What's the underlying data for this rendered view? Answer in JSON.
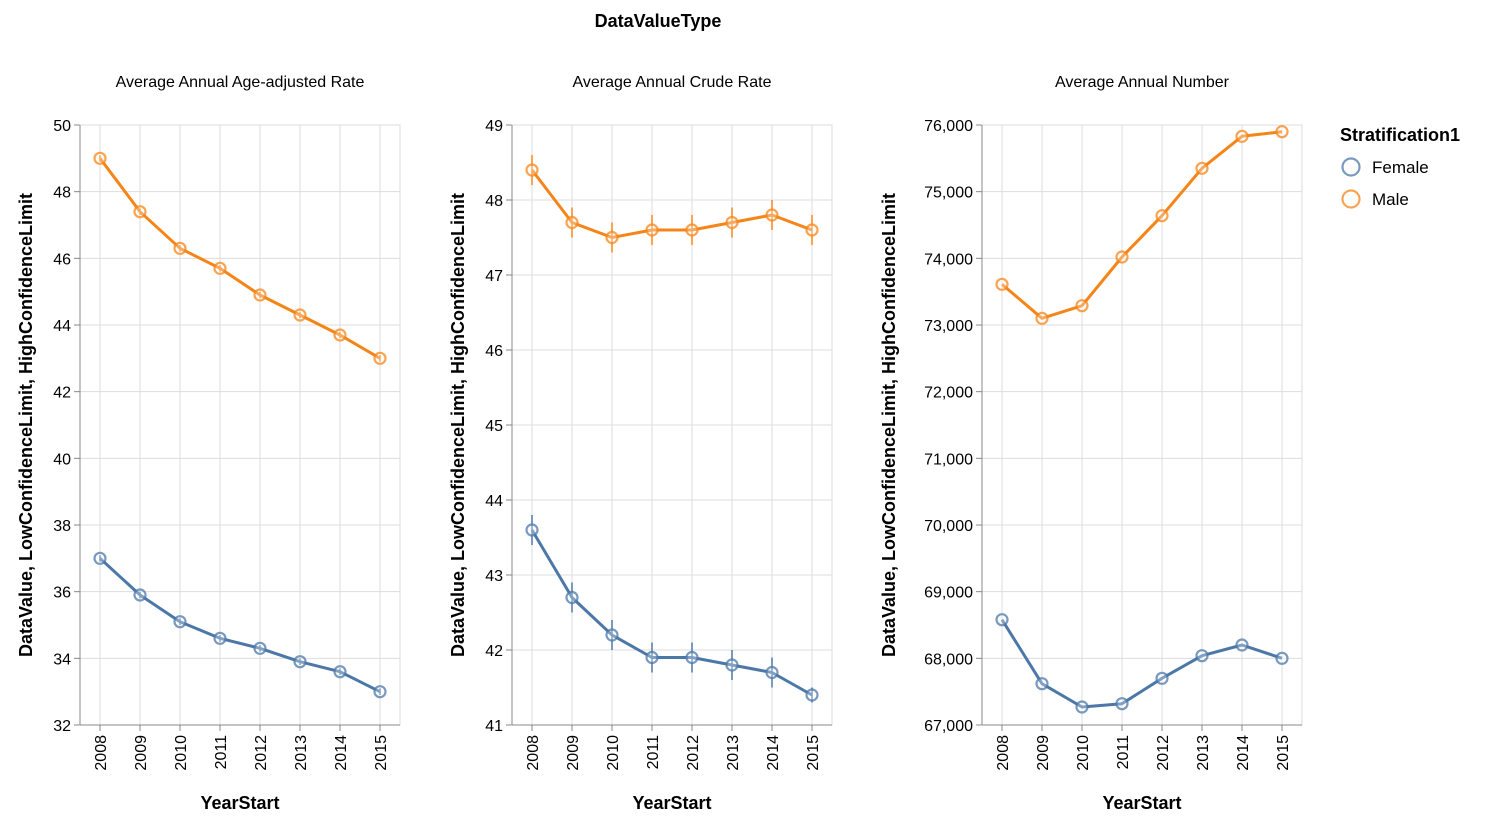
{
  "header_title": "DataValueType",
  "legend": {
    "title": "Stratification1",
    "items": [
      {
        "label": "Female",
        "color": "#4c78a8"
      },
      {
        "label": "Male",
        "color": "#f58518"
      }
    ]
  },
  "chart_data": [
    {
      "type": "line",
      "title": "Average Annual Age-adjusted Rate",
      "xlabel": "YearStart",
      "ylabel": "DataValue, LowConfidenceLimit, HighConfidenceLimit",
      "categories": [
        "2008",
        "2009",
        "2010",
        "2011",
        "2012",
        "2013",
        "2014",
        "2015"
      ],
      "ylim": [
        32,
        50
      ],
      "yticks": [
        32,
        34,
        36,
        38,
        40,
        42,
        44,
        46,
        48,
        50
      ],
      "ytick_labels": [
        "32",
        "34",
        "36",
        "38",
        "40",
        "42",
        "44",
        "46",
        "48",
        "50"
      ],
      "grid": true,
      "series": [
        {
          "name": "Female",
          "color": "#4c78a8",
          "values": [
            37.0,
            35.9,
            35.1,
            34.6,
            34.3,
            33.9,
            33.6,
            33.0
          ],
          "low": [
            36.9,
            35.8,
            35.0,
            34.5,
            34.2,
            33.8,
            33.5,
            32.9
          ],
          "high": [
            37.1,
            36.0,
            35.2,
            34.7,
            34.4,
            34.0,
            33.7,
            33.1
          ]
        },
        {
          "name": "Male",
          "color": "#f58518",
          "values": [
            49.0,
            47.4,
            46.3,
            45.7,
            44.9,
            44.3,
            43.7,
            43.0
          ],
          "low": [
            48.9,
            47.3,
            46.2,
            45.6,
            44.8,
            44.2,
            43.6,
            42.9
          ],
          "high": [
            49.1,
            47.5,
            46.4,
            45.8,
            45.0,
            44.4,
            43.8,
            43.1
          ]
        }
      ]
    },
    {
      "type": "line",
      "title": "Average Annual Crude Rate",
      "xlabel": "YearStart",
      "ylabel": "DataValue, LowConfidenceLimit, HighConfidenceLimit",
      "categories": [
        "2008",
        "2009",
        "2010",
        "2011",
        "2012",
        "2013",
        "2014",
        "2015"
      ],
      "ylim": [
        41,
        49
      ],
      "yticks": [
        41,
        42,
        43,
        44,
        45,
        46,
        47,
        48,
        49
      ],
      "ytick_labels": [
        "41",
        "42",
        "43",
        "44",
        "45",
        "46",
        "47",
        "48",
        "49"
      ],
      "grid": true,
      "series": [
        {
          "name": "Female",
          "color": "#4c78a8",
          "values": [
            43.6,
            42.7,
            42.2,
            41.9,
            41.9,
            41.8,
            41.7,
            41.4
          ],
          "low": [
            43.4,
            42.5,
            42.0,
            41.7,
            41.7,
            41.6,
            41.5,
            41.3
          ],
          "high": [
            43.8,
            42.9,
            42.4,
            42.1,
            42.1,
            42.0,
            41.9,
            41.5
          ]
        },
        {
          "name": "Male",
          "color": "#f58518",
          "values": [
            48.4,
            47.7,
            47.5,
            47.6,
            47.6,
            47.7,
            47.8,
            47.6
          ],
          "low": [
            48.2,
            47.5,
            47.3,
            47.4,
            47.4,
            47.5,
            47.6,
            47.4
          ],
          "high": [
            48.6,
            47.9,
            47.7,
            47.8,
            47.8,
            47.9,
            48.0,
            47.8
          ]
        }
      ]
    },
    {
      "type": "line",
      "title": "Average Annual Number",
      "xlabel": "YearStart",
      "ylabel": "DataValue, LowConfidenceLimit, HighConfidenceLimit",
      "categories": [
        "2008",
        "2009",
        "2010",
        "2011",
        "2012",
        "2013",
        "2014",
        "2015"
      ],
      "ylim": [
        67000,
        76000
      ],
      "yticks": [
        67000,
        68000,
        69000,
        70000,
        71000,
        72000,
        73000,
        74000,
        75000,
        76000
      ],
      "ytick_labels": [
        "67,000",
        "68,000",
        "69,000",
        "70,000",
        "71,000",
        "72,000",
        "73,000",
        "74,000",
        "75,000",
        "76,000"
      ],
      "grid": true,
      "series": [
        {
          "name": "Female",
          "color": "#4c78a8",
          "values": [
            68580,
            67620,
            67270,
            67320,
            67700,
            68040,
            68200,
            68000
          ]
        },
        {
          "name": "Male",
          "color": "#f58518",
          "values": [
            73610,
            73100,
            73290,
            74020,
            74640,
            75350,
            75830,
            75900
          ]
        }
      ]
    }
  ]
}
